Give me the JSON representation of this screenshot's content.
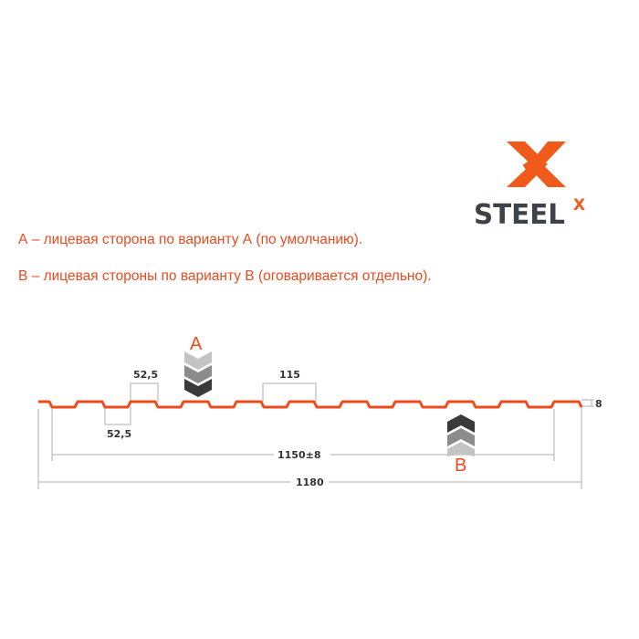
{
  "logo": {
    "text": "STEEL",
    "superscript": "X",
    "brand_color": "#f05a1a",
    "text_color": "#3d4249"
  },
  "notes": [
    "А – лицевая сторона по варианту А (по умолчанию).",
    "В – лицевая стороны по варианту В (оговаривается отдельно)."
  ],
  "diagram": {
    "profile_color": "#f04a1c",
    "dimensions": {
      "top_width": "52,5",
      "bottom_width": "52,5",
      "pitch": "115",
      "height": "8",
      "useful_width": "1150±8",
      "total_width": "1180"
    },
    "side_a_label": "A",
    "side_b_label": "B"
  }
}
